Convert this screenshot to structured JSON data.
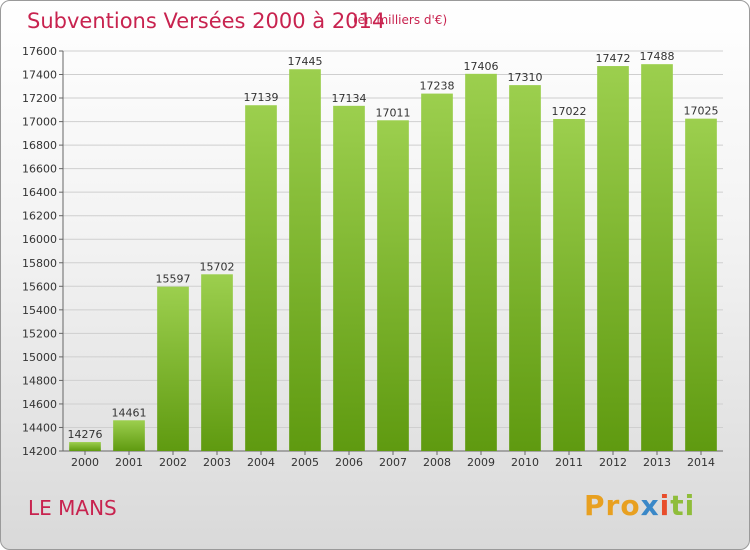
{
  "header": {
    "title": "Subventions Versées 2000 à 2014",
    "unit_note": "(en milliers d'€)"
  },
  "footer": {
    "city": "LE MANS",
    "logo_text": [
      "Pro",
      "x",
      "i",
      "ti"
    ]
  },
  "colors": {
    "bar_top": "#9ccf4e",
    "bar_bottom": "#5f9a10",
    "title": "#c8234f"
  },
  "chart_data": {
    "type": "bar",
    "title": "Subventions Versées 2000 à 2014",
    "subtitle": "(en milliers d'€)",
    "xlabel": "",
    "ylabel": "",
    "categories": [
      "2000",
      "2001",
      "2002",
      "2003",
      "2004",
      "2005",
      "2006",
      "2007",
      "2008",
      "2009",
      "2010",
      "2011",
      "2012",
      "2013",
      "2014"
    ],
    "values": [
      14276,
      14461,
      15597,
      15702,
      17139,
      17445,
      17134,
      17011,
      17238,
      17406,
      17310,
      17022,
      17472,
      17488,
      17025
    ],
    "ylim": [
      14200,
      17600
    ],
    "yticks": [
      14200,
      14400,
      14600,
      14800,
      15000,
      15200,
      15400,
      15600,
      15800,
      16000,
      16200,
      16400,
      16600,
      16800,
      17000,
      17200,
      17400,
      17600
    ],
    "grid": true,
    "legend": "none"
  }
}
